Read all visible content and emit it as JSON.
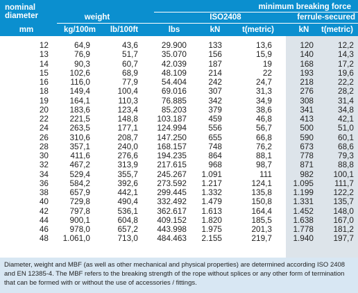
{
  "header": {
    "nominal_diameter": "nominal diameter",
    "weight": "weight",
    "min_breaking_force": "minimum breaking force",
    "iso": "ISO2408",
    "ferrule": "ferrule-secured",
    "units": [
      "mm",
      "kg/100m",
      "lb/100ft",
      "lbs",
      "kN",
      "t(metric)",
      "kN",
      "t(metric)"
    ]
  },
  "rows": [
    [
      "12",
      "64,9",
      "43,6",
      "29.900",
      "133",
      "13,6",
      "120",
      "12,2"
    ],
    [
      "13",
      "76,9",
      "51,7",
      "35.070",
      "156",
      "15,9",
      "140",
      "14,3"
    ],
    [
      "14",
      "90,3",
      "60,7",
      "42.039",
      "187",
      "19",
      "168",
      "17,2"
    ],
    [
      "15",
      "102,6",
      "68,9",
      "48.109",
      "214",
      "22",
      "193",
      "19,6"
    ],
    [
      "16",
      "116,0",
      "77,9",
      "54.404",
      "242",
      "24,7",
      "218",
      "22,2"
    ],
    [
      "18",
      "149,4",
      "100,4",
      "69.016",
      "307",
      "31,3",
      "276",
      "28,2"
    ],
    [
      "19",
      "164,1",
      "110,3",
      "76.885",
      "342",
      "34,9",
      "308",
      "31,4"
    ],
    [
      "20",
      "183,6",
      "123,4",
      "85.203",
      "379",
      "38,6",
      "341",
      "34,8"
    ],
    [
      "22",
      "221,5",
      "148,8",
      "103.187",
      "459",
      "46,8",
      "413",
      "42,1"
    ],
    [
      "24",
      "263,5",
      "177,1",
      "124.994",
      "556",
      "56,7",
      "500",
      "51,0"
    ],
    [
      "26",
      "310,6",
      "208,7",
      "147.250",
      "655",
      "66,8",
      "590",
      "60,1"
    ],
    [
      "28",
      "357,1",
      "240,0",
      "168.157",
      "748",
      "76,2",
      "673",
      "68,6"
    ],
    [
      "30",
      "411,6",
      "276,6",
      "194.235",
      "864",
      "88,1",
      "778",
      "79,3"
    ],
    [
      "32",
      "467,2",
      "313,9",
      "217.615",
      "968",
      "98,7",
      "871",
      "88,8"
    ],
    [
      "34",
      "529,4",
      "355,7",
      "245.267",
      "1.091",
      "111",
      "982",
      "100,1"
    ],
    [
      "36",
      "584,2",
      "392,6",
      "273.592",
      "1.217",
      "124,1",
      "1.095",
      "111,7"
    ],
    [
      "38",
      "657,9",
      "442,1",
      "299.445",
      "1.332",
      "135,8",
      "1.199",
      "122,2"
    ],
    [
      "40",
      "729,8",
      "490,4",
      "332.492",
      "1.479",
      "150,8",
      "1.331",
      "135,7"
    ],
    [
      "42",
      "797,8",
      "536,1",
      "362.617",
      "1.613",
      "164,4",
      "1.452",
      "148,0"
    ],
    [
      "44",
      "900,1",
      "604,8",
      "409.152",
      "1.820",
      "185,5",
      "1.638",
      "167,0"
    ],
    [
      "46",
      "978,0",
      "657,2",
      "443.998",
      "1.975",
      "201,3",
      "1.778",
      "181,2"
    ],
    [
      "48",
      "1.061,0",
      "713,0",
      "484.463",
      "2.155",
      "219,7",
      "1.940",
      "197,7"
    ]
  ],
  "footnote": "Diameter, weight and MBF (as well as other mechanical and physical properties) are determined according ISO 2408 and EN 12385-4. The MBF refers to the breaking strength of the rope without splices or any other form of termination that can be formed with or without the use of accessories / fittings."
}
